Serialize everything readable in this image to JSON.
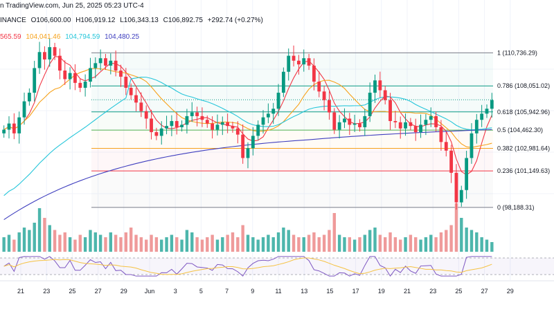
{
  "header": {
    "publisher_line": "n TradingView.com, Jun 25, 2025 05:23 UTC-4",
    "exchange": "INANCE",
    "open": "O106,600.00",
    "high": "H106,919.12",
    "low": "L106,343.13",
    "close": "C106,892.75",
    "change": "+292.74 (+0.27%)",
    "ma_values": [
      {
        "text": "565.59",
        "color": "#f23645"
      },
      {
        "text": "104,041.46",
        "color": "#f7a21b"
      },
      {
        "text": "104,794.59",
        "color": "#26c6da"
      },
      {
        "text": "104,480.25",
        "color": "#3f3fbf"
      }
    ]
  },
  "colors": {
    "up": "#089981",
    "down": "#f23645",
    "vol_up": "#4db6ac",
    "vol_down": "#ef9a9a",
    "ma_red": "#f23645",
    "ma_orange": "#f7a21b",
    "ma_cyan": "#26c6da",
    "ma_blue": "#3f3fbf",
    "rsi": "#7e57c2",
    "rsi_ma": "#f5c242"
  },
  "chart_data": {
    "type": "candlestick",
    "symbol_exchange": "INANCE",
    "y_range": [
      96500,
      112500
    ],
    "x_tick_labels": [
      "21",
      "23",
      "25",
      "27",
      "29",
      "Jun",
      "3",
      "5",
      "7",
      "9",
      "11",
      "13",
      "15",
      "17",
      "19",
      "21",
      "23",
      "25",
      "27",
      "29"
    ],
    "fib_levels": [
      {
        "label": "1 (110,736.29)",
        "value": 110736.29,
        "color": "#787b86"
      },
      {
        "label": "0.786 (108,051.02)",
        "value": 108051.02,
        "color": "#089981"
      },
      {
        "label": "0.618 (105,942.96)",
        "value": 105942.96,
        "color": "#089981"
      },
      {
        "label": "0.5 (104,462.30)",
        "value": 104462.3,
        "color": "#4caf50"
      },
      {
        "label": "0.382 (102,981.64)",
        "value": 102981.64,
        "color": "#f7a21b"
      },
      {
        "label": "0.236 (101,149.63)",
        "value": 101149.63,
        "color": "#f23645"
      },
      {
        "label": "0 (98,188.31)",
        "value": 98188.31,
        "color": "#787b86"
      }
    ],
    "closes": [
      104500,
      105000,
      104200,
      105500,
      106800,
      107500,
      109500,
      110800,
      110200,
      111200,
      110500,
      109300,
      108600,
      109100,
      108300,
      107900,
      108400,
      109500,
      109900,
      110300,
      109700,
      110100,
      109300,
      108800,
      107900,
      107300,
      106700,
      106000,
      105400,
      104300,
      104000,
      104600,
      104800,
      105200,
      104700,
      104900,
      105600,
      105900,
      105600,
      105300,
      105000,
      104500,
      104900,
      105100,
      104800,
      104600,
      104100,
      102200,
      103000,
      104000,
      104900,
      105500,
      105800,
      106200,
      107500,
      109200,
      110500,
      110100,
      109800,
      110300,
      109700,
      108400,
      107600,
      106900,
      105900,
      104500,
      105100,
      105400,
      104900,
      105000,
      104700,
      105600,
      107500,
      108500,
      107700,
      106900,
      105200,
      105100,
      104600,
      105100,
      104800,
      104300,
      104900,
      105300,
      105600,
      104700,
      103500,
      102800,
      101000,
      98600,
      99600,
      102200,
      104200,
      105300,
      105800,
      106200,
      106900
    ],
    "volumes": [
      0.3,
      0.35,
      0.25,
      0.4,
      0.5,
      0.45,
      0.6,
      0.9,
      0.7,
      0.55,
      0.45,
      0.35,
      0.4,
      0.3,
      0.25,
      0.35,
      0.3,
      0.45,
      0.4,
      0.35,
      0.3,
      0.4,
      0.35,
      0.3,
      0.4,
      0.5,
      0.35,
      0.3,
      0.25,
      0.35,
      0.3,
      0.25,
      0.3,
      0.35,
      0.3,
      0.25,
      0.45,
      0.4,
      0.3,
      0.25,
      0.3,
      0.35,
      0.25,
      0.3,
      0.35,
      0.4,
      0.3,
      0.55,
      0.35,
      0.3,
      0.25,
      0.3,
      0.35,
      0.3,
      0.4,
      0.5,
      0.45,
      0.35,
      0.3,
      0.3,
      0.35,
      0.4,
      0.3,
      0.35,
      0.45,
      0.8,
      0.35,
      0.3,
      0.3,
      0.25,
      0.3,
      0.35,
      0.45,
      0.5,
      0.35,
      0.3,
      0.4,
      0.3,
      0.25,
      0.3,
      0.35,
      0.3,
      0.25,
      0.3,
      0.35,
      0.3,
      0.4,
      0.45,
      0.55,
      1.0,
      0.7,
      0.5,
      0.45,
      0.4,
      0.3,
      0.25,
      0.2
    ],
    "rsi_range": [
      20,
      80
    ]
  }
}
